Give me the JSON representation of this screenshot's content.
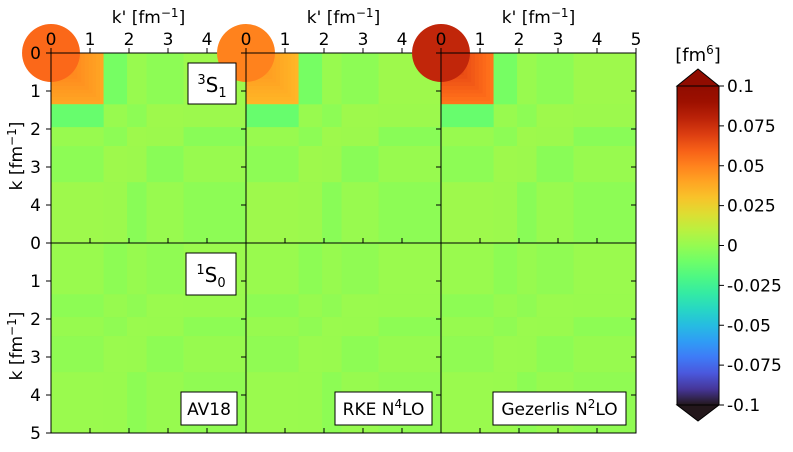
{
  "chart_data": {
    "type": "heatmap",
    "rows": 2,
    "cols": 3,
    "shared_x_label": "k' [fm⁻¹]",
    "shared_y_label": "k [fm⁻¹]",
    "x_ticks": [
      [
        "0",
        "1",
        "2",
        "3",
        "4"
      ],
      [
        "0",
        "1",
        "2",
        "3",
        "4"
      ],
      [
        "0",
        "1",
        "2",
        "3",
        "4",
        "5"
      ]
    ],
    "y_ticks": [
      [
        "0",
        "1",
        "2",
        "3",
        "4"
      ],
      [
        "0",
        "1",
        "2",
        "3",
        "4",
        "5"
      ]
    ],
    "xlim": [
      0,
      5
    ],
    "ylim": [
      0,
      5
    ],
    "row_labels": [
      "3S1",
      "1S0"
    ],
    "row_label_sup": [
      "3",
      "1"
    ],
    "row_label_base": [
      "S",
      "S"
    ],
    "row_label_sub": [
      "1",
      "0"
    ],
    "col_labels": [
      "AV18",
      "RKE N4LO",
      "Gezerlis N2LO"
    ],
    "col_label_parts": [
      {
        "base": "AV18",
        "sup": "",
        "tail": ""
      },
      {
        "base": "RKE N",
        "sup": "4",
        "tail": "LO"
      },
      {
        "base": "Gezerlis N",
        "sup": "2",
        "tail": "LO"
      }
    ],
    "panel_peak_values": [
      [
        0.055,
        0.048,
        0.075
      ],
      [
        0.0,
        0.0,
        0.0
      ]
    ],
    "low_k_block_max": 1.35,
    "colorbar": {
      "label": "[fm6]",
      "label_base": "[fm",
      "label_sup": "6",
      "label_tail": "]",
      "vmin": -0.1,
      "vmax": 0.1,
      "ticks": [
        "0.1",
        "0.075",
        "0.05",
        "0.025",
        "0",
        "-0.025",
        "-0.05",
        "-0.075",
        "-0.1"
      ],
      "colormap": "turbo",
      "extend": "both"
    }
  }
}
